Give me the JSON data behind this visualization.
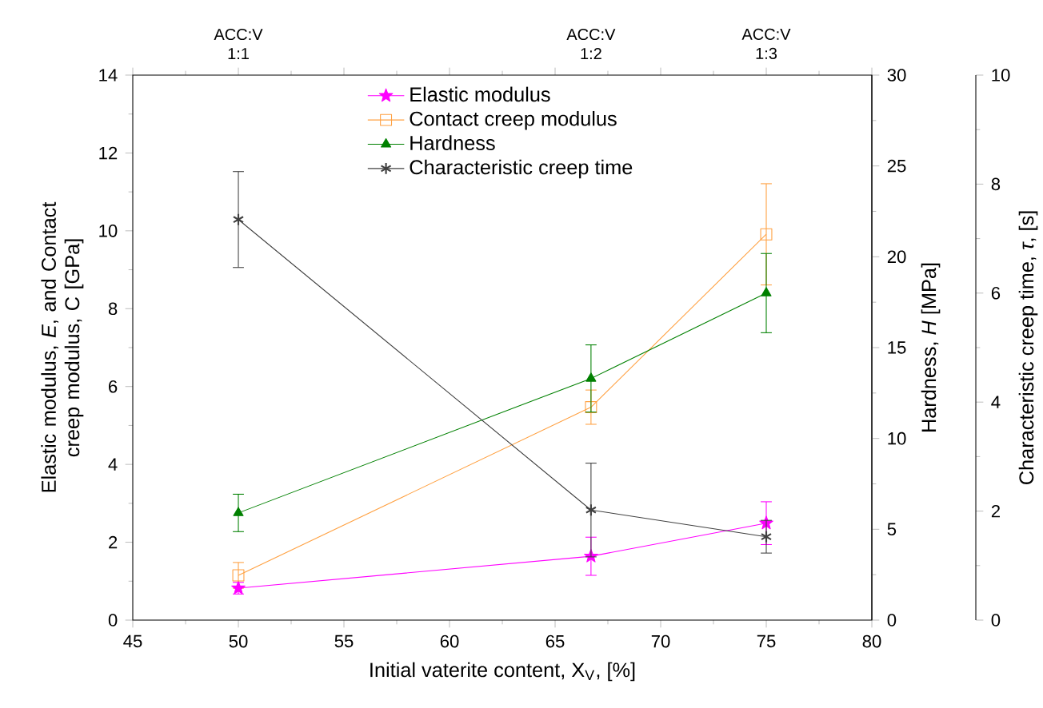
{
  "chart_data": {
    "type": "line",
    "xlabel": "Initial vaterite content, X$_{V}$, [%]",
    "ylabel": "Elastic modulus, *E*, and Contact creep modulus, C [GPa]",
    "y2label": "Hardness, *H* [MPa]",
    "y3label": "Characteristic creep time, *τ*, [s]",
    "x": [
      50,
      66.7,
      75
    ],
    "xlim": [
      45,
      80
    ],
    "xticks": [
      45,
      50,
      55,
      60,
      65,
      70,
      75,
      80
    ],
    "ylim": [
      0,
      14
    ],
    "yticks": [
      0,
      2,
      4,
      6,
      8,
      10,
      12,
      14
    ],
    "y2lim": [
      0,
      30
    ],
    "y2ticks": [
      0,
      5,
      10,
      15,
      20,
      25,
      30
    ],
    "y3lim": [
      0,
      10
    ],
    "y3ticks": [
      0,
      2,
      4,
      6,
      8,
      10
    ],
    "annotations": [
      "ACC:V 1:1",
      "ACC:V 1:2",
      "ACC:V 1:3"
    ],
    "legend": "top",
    "grid": false,
    "series": [
      {
        "name": "Elastic modulus",
        "color": "#ff00ff",
        "marker": "star",
        "values": [
          0.82,
          1.64,
          2.49
        ],
        "errors": [
          0.15,
          0.49,
          0.55
        ]
      },
      {
        "name": "Contact creep modulus",
        "color": "#ffa040",
        "marker": "square",
        "values": [
          1.15,
          5.47,
          9.91
        ],
        "errors": [
          0.33,
          0.44,
          1.3
        ]
      },
      {
        "name": "Hardness",
        "color": "#008000",
        "marker": "triangle",
        "axis": "y2",
        "values": [
          5.9,
          13.3,
          18.0
        ],
        "errors": [
          1.03,
          1.85,
          2.18
        ]
      },
      {
        "name": "Characteristic creep time",
        "color": "#404040",
        "marker": "cross",
        "axis": "y3",
        "values": [
          7.35,
          2.02,
          1.53
        ],
        "errors": [
          0.88,
          0.86,
          0.3
        ]
      }
    ]
  }
}
